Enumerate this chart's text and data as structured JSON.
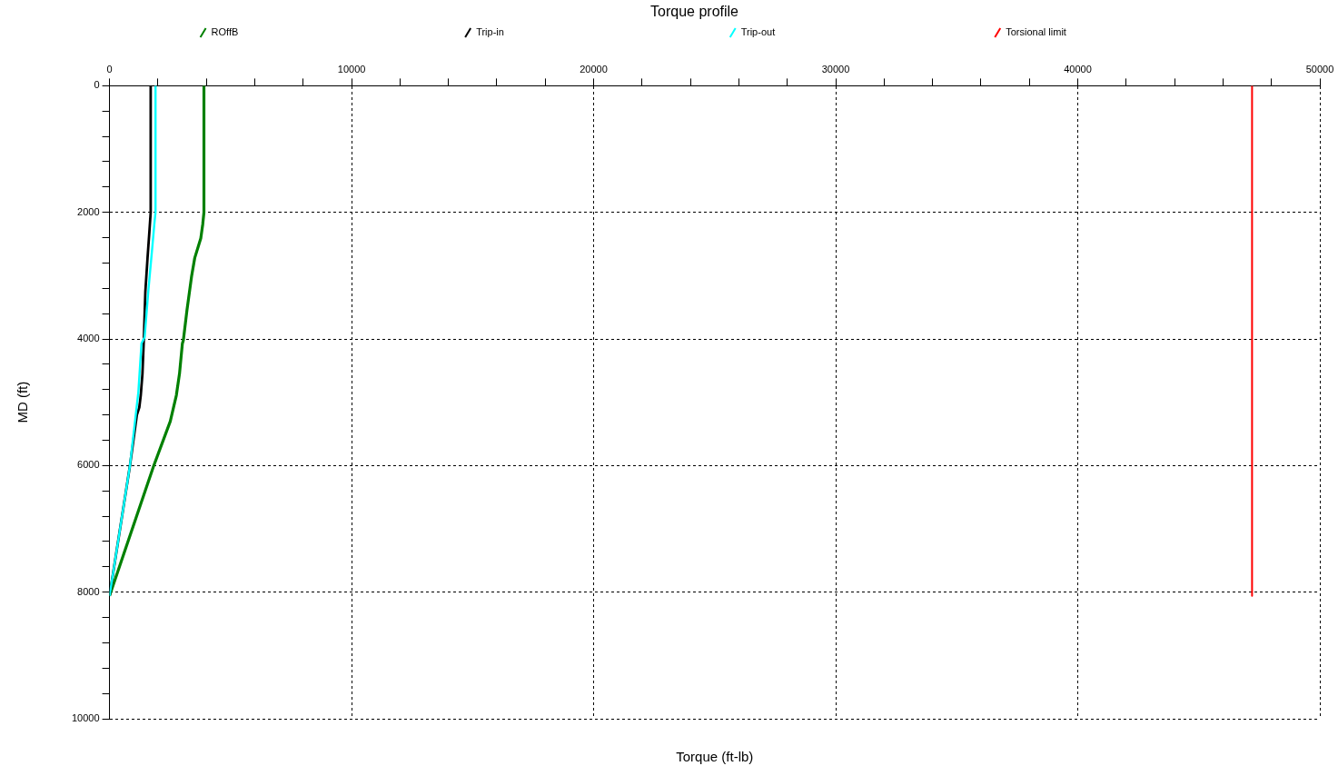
{
  "chart_data": {
    "type": "line",
    "title": "Torque profile",
    "xlabel": "Torque (ft-lb)",
    "ylabel": "MD (ft)",
    "xlim": [
      0,
      50000
    ],
    "ylim": [
      10000,
      0
    ],
    "xticks": [
      0,
      {
        "value": 2000,
        "label": null
      },
      {
        "value": 4000,
        "label": null
      },
      {
        "value": 6000,
        "label": null
      },
      {
        "value": 8000,
        "label": null
      },
      10000,
      {
        "value": 12000,
        "label": null
      },
      {
        "value": 14000,
        "label": null
      },
      {
        "value": 16000,
        "label": null
      },
      {
        "value": 18000,
        "label": null
      },
      20000,
      {
        "value": 22000,
        "label": null
      },
      {
        "value": 24000,
        "label": null
      },
      {
        "value": 26000,
        "label": null
      },
      {
        "value": 28000,
        "label": null
      },
      30000,
      {
        "value": 32000,
        "label": null
      },
      {
        "value": 34000,
        "label": null
      },
      {
        "value": 36000,
        "label": null
      },
      {
        "value": 38000,
        "label": null
      },
      40000,
      {
        "value": 42000,
        "label": null
      },
      {
        "value": 44000,
        "label": null
      },
      {
        "value": 46000,
        "label": null
      },
      {
        "value": 48000,
        "label": null
      },
      50000
    ],
    "yticks": [
      0,
      {
        "value": 400,
        "label": null
      },
      {
        "value": 800,
        "label": null
      },
      {
        "value": 1200,
        "label": null
      },
      {
        "value": 1600,
        "label": null
      },
      2000,
      {
        "value": 2400,
        "label": null
      },
      {
        "value": 2800,
        "label": null
      },
      {
        "value": 3200,
        "label": null
      },
      {
        "value": 3600,
        "label": null
      },
      4000,
      {
        "value": 4400,
        "label": null
      },
      {
        "value": 4800,
        "label": null
      },
      {
        "value": 5200,
        "label": null
      },
      {
        "value": 5600,
        "label": null
      },
      6000,
      {
        "value": 6400,
        "label": null
      },
      {
        "value": 6800,
        "label": null
      },
      {
        "value": 7200,
        "label": null
      },
      {
        "value": 7600,
        "label": null
      },
      8000,
      {
        "value": 8400,
        "label": null
      },
      {
        "value": 8800,
        "label": null
      },
      {
        "value": 9200,
        "label": null
      },
      {
        "value": 9600,
        "label": null
      },
      10000
    ],
    "grid": true,
    "legend": "top",
    "marker": "none",
    "line_style": "solid",
    "series": [
      {
        "name": "ROffB",
        "color": "#008000",
        "x": [
          3900,
          3900,
          3850,
          3770,
          3520,
          3390,
          3200,
          3050,
          3010,
          2890,
          2760,
          2510,
          1820,
          0
        ],
        "values": [
          0,
          2000,
          2190,
          2410,
          2720,
          3010,
          3540,
          4020,
          4070,
          4550,
          4890,
          5300,
          6010,
          8060
        ]
      },
      {
        "name": "Trip-in",
        "color": "#000000",
        "x": [
          1700,
          1700,
          1640,
          1570,
          1480,
          1420,
          1360,
          1290,
          1230,
          1130,
          840,
          0
        ],
        "values": [
          0,
          2000,
          2340,
          2720,
          3250,
          3970,
          4550,
          4890,
          5080,
          5200,
          6010,
          8060
        ]
      },
      {
        "name": "Trip-out",
        "color": "#00ffff",
        "x": [
          1900,
          1900,
          1850,
          1760,
          1600,
          1450,
          1320,
          1190,
          840,
          0
        ],
        "values": [
          0,
          2000,
          2190,
          2580,
          3250,
          3970,
          4070,
          4840,
          6010,
          8060
        ]
      },
      {
        "name": "Torsional limit",
        "color": "#ff0000",
        "x": [
          47200,
          47200
        ],
        "values": [
          0,
          8060
        ]
      }
    ]
  }
}
